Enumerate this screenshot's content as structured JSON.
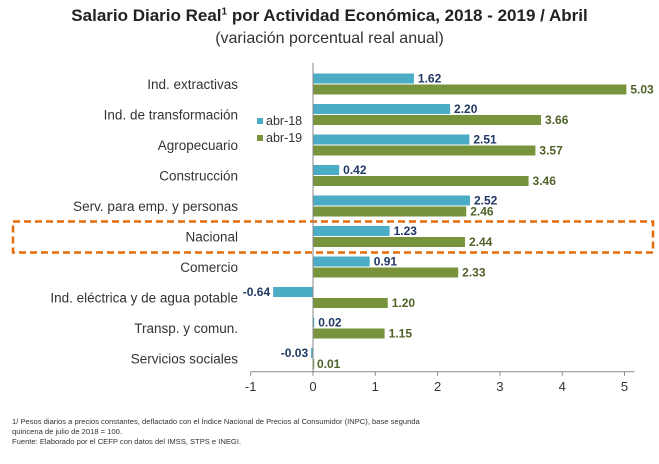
{
  "header": {
    "title": "Salario Diario Real",
    "title_sup": "1",
    "title_rest": " por Actividad Económica, 2018 - 2019 / Abril",
    "subtitle": "(variación porcentual real anual)"
  },
  "chart_data": {
    "type": "bar",
    "orientation": "horizontal",
    "title": "Salario Diario Real¹ por Actividad Económica, 2018 - 2019 / Abril",
    "subtitle": "(variación porcentual real anual)",
    "categories": [
      "Ind. extractivas",
      "Ind. de transformación",
      "Agropecuario",
      "Construcción",
      "Serv. para emp. y personas",
      "Nacional",
      "Comercio",
      "Ind. eléctrica y de agua potable",
      "Transp. y comun.",
      "Servicios sociales"
    ],
    "series": [
      {
        "name": "abr-18",
        "color": "#4bacc6",
        "values": [
          1.62,
          2.2,
          2.51,
          0.42,
          2.52,
          1.23,
          0.91,
          -0.64,
          0.02,
          -0.03
        ],
        "labels": [
          "1.62",
          "2.20",
          "2.51",
          "0.42",
          "2.52",
          "1.23",
          "0.91",
          "-0.64",
          "0.02",
          "-0.03"
        ]
      },
      {
        "name": "abr-19",
        "color": "#77933c",
        "values": [
          5.03,
          3.66,
          3.57,
          3.46,
          2.46,
          2.44,
          2.33,
          1.2,
          1.15,
          0.01
        ],
        "labels": [
          "5.03",
          "3.66",
          "3.57",
          "3.46",
          "2.46",
          "2.44",
          "2.33",
          "1.20",
          "1.15",
          "0.01"
        ]
      }
    ],
    "xlim": [
      -1,
      5
    ],
    "xticks": [
      "-1",
      "0",
      "1",
      "2",
      "3",
      "4",
      "5"
    ],
    "grid": false,
    "legend_position": "left",
    "highlight_category": "Nacional",
    "highlight_color": "#e46c0a",
    "label_colors": {
      "abr-18": "#1f3864",
      "abr-19": "#4f6228"
    }
  },
  "footnotes": [
    "1/ Pesos diarios a precios constantes, deflactado con el Índice Nacional de Precios al Consumidor (INPC), base segunda",
    "quincena de julio de 2018 = 100.",
    "Fuente: Elaborado por el CEFP con datos  del IMSS, STPS e INEGI."
  ]
}
